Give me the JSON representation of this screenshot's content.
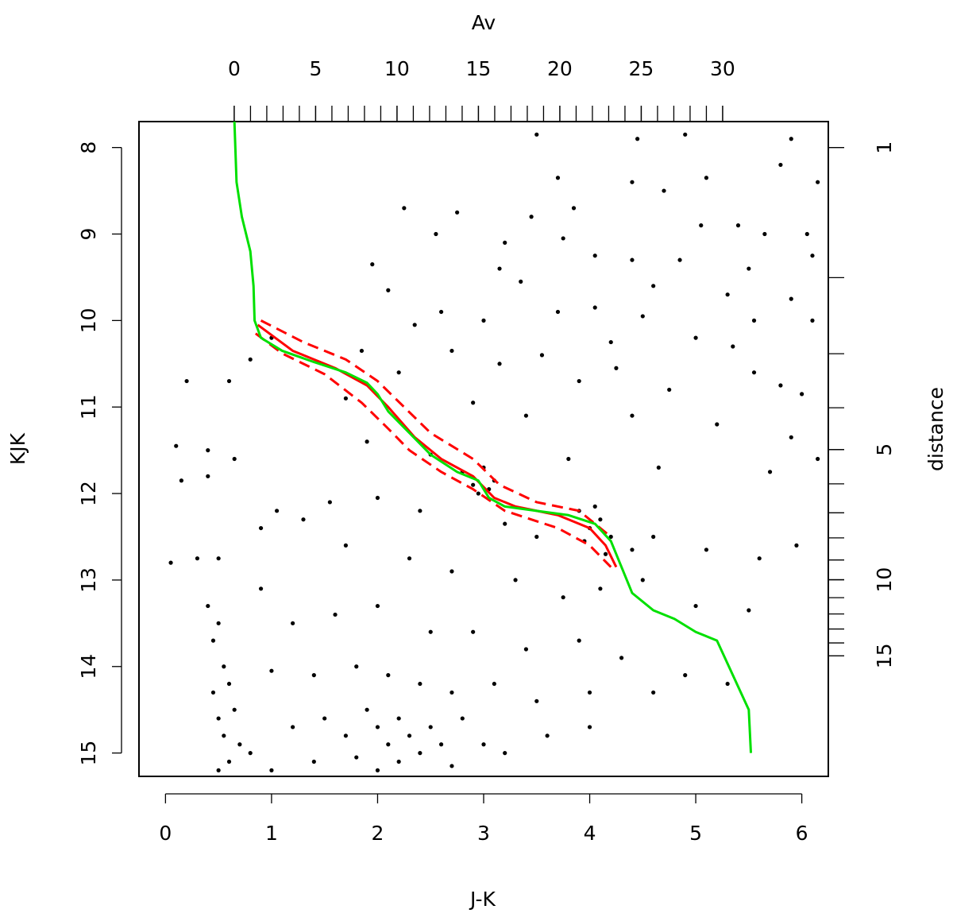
{
  "chart_data": {
    "type": "scatter",
    "xlabel": "J-K",
    "ylabel": "KJK",
    "x2label": "Av",
    "y2label": "distance",
    "xlim": [
      -0.25,
      6.25
    ],
    "xticks": [
      0,
      1,
      2,
      3,
      4,
      5,
      6
    ],
    "ylim": [
      7.7,
      15.27
    ],
    "y_reversed": true,
    "yticks": [
      8,
      9,
      10,
      11,
      12,
      13,
      14,
      15
    ],
    "x2lim": [
      -5.85,
      36.49
    ],
    "x2ticks": [
      0,
      5,
      10,
      15,
      20,
      25,
      30
    ],
    "x2minor_ticks": [
      0,
      1,
      2,
      3,
      4,
      5,
      6,
      7,
      8,
      9,
      10,
      11,
      12,
      13,
      14,
      15,
      16,
      17,
      18,
      19,
      20,
      21,
      22,
      23,
      24,
      25,
      26,
      27,
      28,
      29,
      30
    ],
    "y2lim": [
      0.871,
      28.5
    ],
    "y2scale": "log",
    "y2ticks": [
      1,
      5,
      10,
      15
    ],
    "y2minor_ticks": [
      1,
      2,
      3,
      4,
      5,
      6,
      7,
      8,
      9,
      10,
      11,
      12,
      13,
      14,
      15
    ],
    "series": [
      {
        "kind": "points",
        "color": "#000000",
        "x": [
          3.5,
          4.45,
          4.9,
          5.9,
          3.7,
          4.4,
          4.7,
          5.1,
          5.8,
          6.15,
          2.25,
          2.75,
          3.45,
          3.85,
          5.05,
          5.4,
          2.55,
          3.2,
          3.75,
          5.65,
          6.05,
          6.1,
          1.95,
          3.15,
          4.05,
          4.4,
          4.85,
          5.5,
          2.1,
          3.35,
          4.6,
          5.3,
          5.9,
          2.6,
          3.7,
          4.5,
          5.55,
          6.1,
          2.35,
          3.0,
          4.05,
          4.2,
          5.0,
          5.35,
          2.7,
          3.55,
          4.25,
          5.55,
          1.85,
          1.0,
          0.8,
          2.2,
          3.15,
          3.9,
          4.75,
          5.8,
          6.0,
          0.6,
          0.2,
          1.7,
          2.9,
          3.4,
          4.4,
          5.2,
          5.9,
          6.15,
          0.1,
          0.15,
          0.4,
          0.65,
          0.4,
          1.9,
          2.5,
          3.8,
          4.65,
          5.7,
          1.05,
          1.55,
          2.0,
          2.4,
          2.8,
          2.9,
          3.0,
          3.1,
          2.95,
          3.05,
          3.2,
          3.5,
          3.9,
          4.0,
          4.05,
          4.1,
          3.95,
          4.2,
          4.15,
          4.4,
          4.6,
          5.1,
          5.6,
          5.95,
          0.3,
          0.05,
          0.5,
          0.9,
          1.3,
          1.7,
          2.3,
          2.7,
          3.3,
          3.75,
          4.1,
          4.5,
          5.0,
          5.5,
          0.4,
          0.5,
          0.45,
          0.9,
          1.2,
          1.6,
          2.0,
          2.5,
          2.9,
          3.4,
          3.9,
          4.3,
          4.9,
          5.3,
          0.55,
          0.6,
          0.45,
          1.0,
          1.4,
          1.8,
          2.1,
          2.4,
          2.7,
          3.1,
          3.5,
          4.0,
          4.6,
          0.5,
          0.65,
          0.55,
          0.7,
          0.6,
          0.8,
          1.2,
          1.5,
          1.7,
          1.9,
          2.0,
          2.1,
          2.2,
          2.3,
          2.4,
          2.5,
          2.6,
          2.2,
          2.0,
          1.8,
          2.8,
          3.0,
          3.2,
          2.7,
          1.4,
          1.0,
          0.5,
          3.6,
          4.0
        ],
        "values": [
          7.85,
          7.9,
          7.85,
          7.9,
          8.35,
          8.4,
          8.5,
          8.35,
          8.2,
          8.4,
          8.7,
          8.75,
          8.8,
          8.7,
          8.9,
          8.9,
          9.0,
          9.1,
          9.05,
          9.0,
          9.0,
          9.25,
          9.35,
          9.4,
          9.25,
          9.3,
          9.3,
          9.4,
          9.65,
          9.55,
          9.6,
          9.7,
          9.75,
          9.9,
          9.9,
          9.95,
          10.0,
          10.0,
          10.05,
          10.0,
          9.85,
          10.25,
          10.2,
          10.3,
          10.35,
          10.4,
          10.55,
          10.6,
          10.35,
          10.2,
          10.45,
          10.6,
          10.5,
          10.7,
          10.8,
          10.75,
          10.85,
          10.7,
          10.7,
          10.9,
          10.95,
          11.1,
          11.1,
          11.2,
          11.35,
          11.6,
          11.45,
          11.85,
          11.5,
          11.6,
          11.8,
          11.4,
          11.55,
          11.6,
          11.7,
          11.75,
          12.2,
          12.1,
          12.05,
          12.2,
          11.75,
          11.9,
          11.7,
          11.85,
          12.0,
          11.95,
          12.35,
          12.5,
          12.2,
          12.4,
          12.15,
          12.3,
          12.55,
          12.5,
          12.7,
          12.65,
          12.5,
          12.65,
          12.75,
          12.6,
          12.75,
          12.8,
          12.75,
          12.4,
          12.3,
          12.6,
          12.75,
          12.9,
          13.0,
          13.2,
          13.1,
          13.0,
          13.3,
          13.35,
          13.3,
          13.5,
          13.7,
          13.1,
          13.5,
          13.4,
          13.3,
          13.6,
          13.6,
          13.8,
          13.7,
          13.9,
          14.1,
          14.2,
          14.0,
          14.2,
          14.3,
          14.05,
          14.1,
          14.0,
          14.1,
          14.2,
          14.3,
          14.2,
          14.4,
          14.3,
          14.3,
          14.6,
          14.5,
          14.8,
          14.9,
          15.1,
          15.0,
          14.7,
          14.6,
          14.8,
          14.5,
          14.7,
          14.9,
          14.6,
          14.8,
          15.0,
          14.7,
          14.9,
          15.1,
          15.2,
          15.05,
          14.6,
          14.9,
          15.0,
          15.15,
          15.1,
          15.2,
          15.2,
          14.8,
          14.7
        ]
      },
      {
        "kind": "line",
        "color": "#ff0000",
        "dashed": true,
        "x": [
          0.9,
          1.3,
          1.7,
          2.0,
          2.25,
          2.5,
          2.9,
          3.15,
          3.5,
          3.9,
          4.2
        ],
        "values": [
          10.0,
          10.25,
          10.45,
          10.7,
          11.0,
          11.3,
          11.6,
          11.9,
          12.1,
          12.2,
          12.5
        ]
      },
      {
        "kind": "line",
        "color": "#ff0000",
        "dashed": true,
        "x": [
          0.85,
          1.1,
          1.5,
          1.85,
          2.1,
          2.3,
          2.6,
          2.9,
          3.2,
          3.7,
          4.0,
          4.2
        ],
        "values": [
          10.15,
          10.38,
          10.62,
          10.95,
          11.25,
          11.5,
          11.75,
          11.95,
          12.2,
          12.4,
          12.6,
          12.85
        ]
      },
      {
        "kind": "line",
        "color": "#ff0000",
        "dashed": false,
        "x": [
          0.87,
          1.2,
          1.6,
          1.9,
          2.1,
          2.35,
          2.6,
          2.9,
          3.1,
          3.3,
          3.7,
          4.0,
          4.15,
          4.25
        ],
        "values": [
          10.05,
          10.35,
          10.55,
          10.75,
          11.0,
          11.35,
          11.6,
          11.8,
          12.05,
          12.15,
          12.25,
          12.4,
          12.6,
          12.85
        ]
      },
      {
        "kind": "line",
        "color": "#00e000",
        "dashed": false,
        "x": [
          0.65,
          0.67,
          0.72,
          0.8,
          0.83,
          0.84,
          0.9,
          1.1,
          1.4,
          1.7,
          1.9,
          2.0,
          2.1,
          2.3,
          2.5,
          2.75,
          2.95,
          3.05,
          3.2,
          3.5,
          3.8,
          4.05,
          4.2,
          4.3,
          4.4,
          4.6,
          4.8,
          5.0,
          5.2,
          5.35,
          5.5,
          5.52
        ],
        "values": [
          7.7,
          8.4,
          8.8,
          9.2,
          9.6,
          10.0,
          10.2,
          10.35,
          10.48,
          10.6,
          10.72,
          10.85,
          11.05,
          11.3,
          11.55,
          11.75,
          11.85,
          12.05,
          12.15,
          12.2,
          12.25,
          12.35,
          12.55,
          12.85,
          13.15,
          13.35,
          13.45,
          13.6,
          13.7,
          14.1,
          14.5,
          15.0
        ]
      }
    ]
  }
}
